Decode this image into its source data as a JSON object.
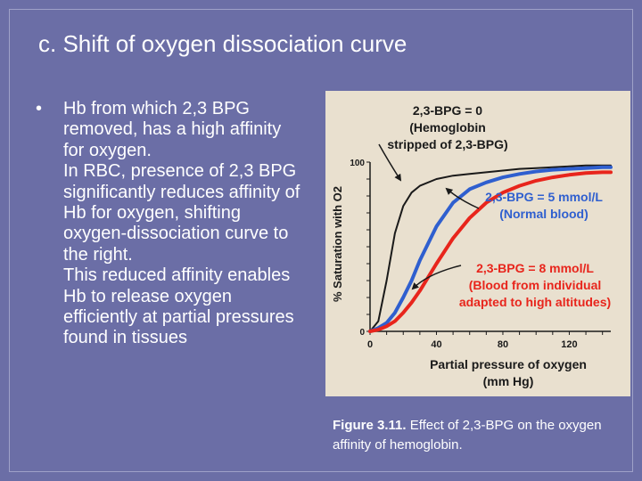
{
  "slide": {
    "title": "c. Shift of oxygen dissociation curve",
    "bullet_symbol": "•",
    "bullet_paragraphs": [
      "Hb from which 2,3 BPG removed, has a high affinity for oxygen.",
      "In RBC, presence of 2,3 BPG significantly reduces affinity of Hb for oxygen, shifting oxygen-dissociation curve to the right.",
      "This reduced affinity enables Hb to release oxygen efficiently at partial pressures found in tissues"
    ]
  },
  "caption": {
    "label": "Figure 3.11.",
    "text": " Effect of 2,3-BPG on the oxygen affinity of hemoglobin."
  },
  "chart_data": {
    "type": "line",
    "xlabel": [
      "Partial pressure of oxygen",
      "(mm Hg)"
    ],
    "ylabel": "% Saturation with O2",
    "xlim": [
      0,
      145
    ],
    "ylim": [
      0,
      100
    ],
    "x_ticks": [
      0,
      40,
      80,
      120
    ],
    "x_tick_labels": [
      "0",
      "40",
      "80",
      "120"
    ],
    "y_ticks": [
      0,
      100
    ],
    "y_tick_labels": [
      "0",
      "100"
    ],
    "grid": false,
    "background_color": "#e9e0cf",
    "x": [
      0,
      5,
      10,
      15,
      20,
      25,
      30,
      40,
      50,
      60,
      70,
      80,
      90,
      100,
      110,
      120,
      130,
      140,
      145
    ],
    "series": [
      {
        "name": "2,3-BPG = 0",
        "color": "#1a1a1a",
        "values": [
          0,
          6,
          30,
          58,
          74,
          82,
          86,
          90,
          92,
          93,
          94,
          95,
          96,
          96.5,
          97,
          97.5,
          98,
          98,
          98
        ]
      },
      {
        "name": "2,3-BPG = 5 mmol/L",
        "color": "#2f5fcf",
        "values": [
          0,
          2,
          5,
          11,
          20,
          30,
          42,
          62,
          76,
          84,
          88,
          91,
          93,
          94.5,
          95.5,
          96,
          96.5,
          97,
          97
        ]
      },
      {
        "name": "2,3-BPG = 8 mmol/L",
        "color": "#e8251c",
        "values": [
          0,
          1,
          3,
          6,
          11,
          17,
          24,
          40,
          55,
          67,
          76,
          82,
          86,
          89,
          91,
          92.5,
          93.5,
          94,
          94
        ]
      }
    ],
    "annotations": [
      {
        "lines": [
          "2,3-BPG = 0",
          "(Hemoglobin",
          "stripped of 2,3-BPG)"
        ],
        "color": "#1a1a1a"
      },
      {
        "lines": [
          "2,3-BPG = 5 mmol/L",
          "(Normal blood)"
        ],
        "color": "#2f5fcf"
      },
      {
        "lines": [
          "2,3-BPG = 8 mmol/L",
          "(Blood from individual",
          "adapted to high altitudes)"
        ],
        "color": "#e8251c"
      }
    ]
  }
}
